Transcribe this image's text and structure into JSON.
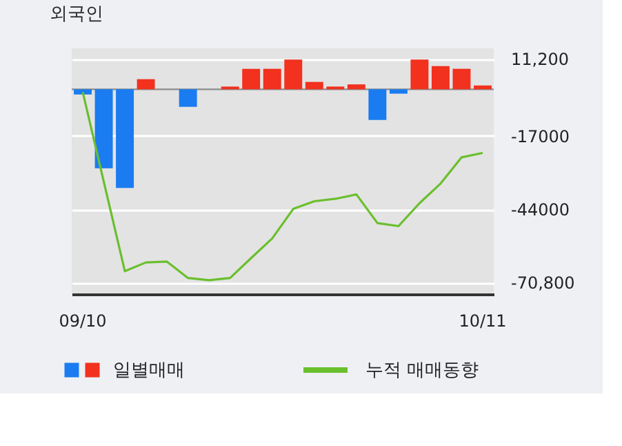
{
  "chart_data": {
    "type": "bar",
    "title": "외국인",
    "categories": [
      "09/10",
      null,
      null,
      null,
      null,
      null,
      null,
      null,
      null,
      null,
      null,
      null,
      null,
      null,
      null,
      null,
      null,
      null,
      null,
      "10/11"
    ],
    "series": [
      {
        "name": "일별매매",
        "colors": [
          "#1a7cf0",
          "#1a7cf0",
          "#1a7cf0",
          "#f2311f",
          "#f2311f",
          "#1a7cf0",
          "#f2311f",
          "#f2311f",
          "#f2311f",
          "#f2311f",
          "#f2311f",
          "#f2311f",
          "#f2311f",
          "#f2311f",
          "#1a7cf0",
          "#1a7cf0",
          "#f2311f",
          "#f2311f",
          "#f2311f",
          "#f2311f"
        ],
        "values": [
          -1900,
          -28900,
          -36100,
          3700,
          0,
          -6400,
          0,
          1000,
          7500,
          7500,
          10900,
          2700,
          1000,
          1800,
          -11200,
          -1600,
          10900,
          8500,
          7500,
          1400
        ]
      },
      {
        "name": "누적 매매동향",
        "type": "line",
        "color": "#6abf2d",
        "values": [
          -1000,
          -33900,
          -66600,
          -63400,
          -63100,
          -69100,
          -69900,
          -69100,
          -61800,
          -54600,
          -43800,
          -41000,
          -40100,
          -38500,
          -49000,
          -50100,
          -41700,
          -34500,
          -24900,
          -23300
        ]
      }
    ],
    "ylim": [
      -75000,
      15000
    ],
    "yticks": [
      {
        "value": 11200,
        "label": "11,200"
      },
      -17000,
      -44000,
      {
        "value": -70800,
        "label": "-70,800"
      }
    ],
    "ref_lines": [
      {
        "axis": "y",
        "value": 0,
        "color": "#8c8c8c"
      }
    ],
    "grid": "y",
    "legend": "bottom"
  }
}
